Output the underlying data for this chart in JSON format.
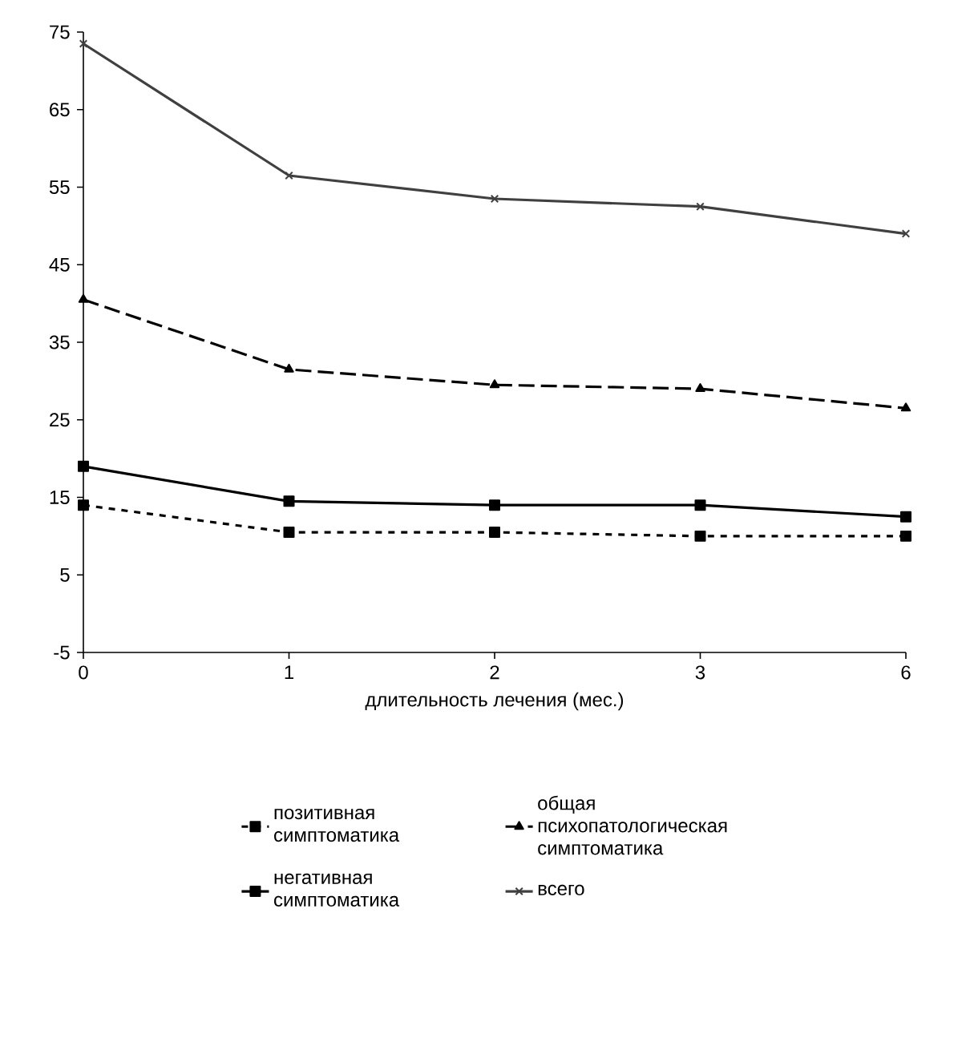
{
  "chart_data": {
    "type": "line",
    "xlabel": "длительность лечения (мес.)",
    "categories": [
      "0",
      "1",
      "2",
      "3",
      "6"
    ],
    "ylim": [
      -5,
      75
    ],
    "yticks": [
      -5,
      5,
      15,
      25,
      35,
      45,
      55,
      65,
      75
    ],
    "legend": "bottom",
    "grid": false,
    "series": [
      {
        "name": "позитивная симптоматика",
        "color": "#000000",
        "marker": "square",
        "line_style": "dotted",
        "values": [
          14,
          10.5,
          10.5,
          10,
          10
        ]
      },
      {
        "name": "общая психопатологическая симптоматика",
        "color": "#000000",
        "marker": "triangle",
        "line_style": "dashed",
        "values": [
          40.5,
          31.5,
          29.5,
          29,
          26.5
        ]
      },
      {
        "name": "негативная симптоматика",
        "color": "#000000",
        "marker": "square",
        "line_style": "solid",
        "values": [
          19,
          14.5,
          14,
          14,
          12.5
        ]
      },
      {
        "name": "всего",
        "color": "#404040",
        "marker": "cross",
        "line_style": "solid",
        "values": [
          73.5,
          56.5,
          53.5,
          52.5,
          49
        ]
      }
    ]
  }
}
